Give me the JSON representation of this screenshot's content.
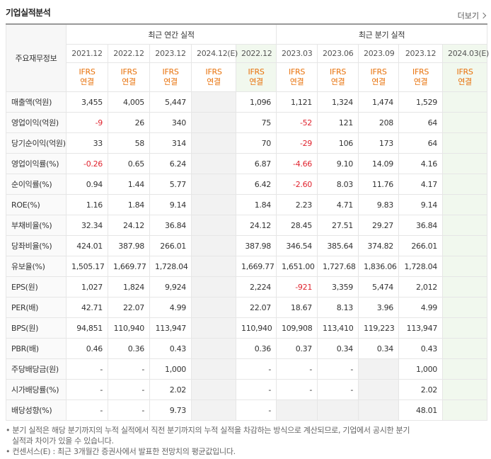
{
  "header": {
    "title": "기업실적분석",
    "more": "더보기"
  },
  "table": {
    "row_header_label": "주요재무정보",
    "group_headers": [
      "최근 연간 실적",
      "최근 분기 실적"
    ],
    "periods": [
      "2021.12",
      "2022.12",
      "2023.12",
      "2024.12(E)",
      "2022.12",
      "2023.03",
      "2023.06",
      "2023.09",
      "2023.12",
      "2024.03(E)"
    ],
    "basis": [
      [
        "IFRS",
        "연결"
      ],
      [
        "IFRS",
        "연결"
      ],
      [
        "IFRS",
        "연결"
      ],
      [
        "IFRS",
        "연결"
      ],
      [
        "IFRS",
        "연결"
      ],
      [
        "IFRS",
        "연결"
      ],
      [
        "IFRS",
        "연결"
      ],
      [
        "IFRS",
        "연결"
      ],
      [
        "IFRS",
        "연결"
      ],
      [
        "IFRS",
        "연결"
      ]
    ],
    "rows": [
      {
        "label": "매출액(억원)",
        "values": [
          "3,455",
          "4,005",
          "5,447",
          null,
          "1,096",
          "1,121",
          "1,324",
          "1,474",
          "1,529",
          null
        ]
      },
      {
        "label": "영업이익(억원)",
        "values": [
          "-9",
          "26",
          "340",
          null,
          "75",
          "-52",
          "121",
          "208",
          "64",
          null
        ]
      },
      {
        "label": "당기순이익(억원)",
        "values": [
          "33",
          "58",
          "314",
          null,
          "70",
          "-29",
          "106",
          "173",
          "64",
          null
        ]
      },
      {
        "label": "영업이익률(%)",
        "values": [
          "-0.26",
          "0.65",
          "6.24",
          null,
          "6.87",
          "-4.66",
          "9.10",
          "14.09",
          "4.16",
          null
        ]
      },
      {
        "label": "순이익률(%)",
        "values": [
          "0.94",
          "1.44",
          "5.77",
          null,
          "6.42",
          "-2.60",
          "8.03",
          "11.76",
          "4.17",
          null
        ]
      },
      {
        "label": "ROE(%)",
        "values": [
          "1.16",
          "1.84",
          "9.14",
          null,
          "1.84",
          "2.23",
          "4.71",
          "9.83",
          "9.14",
          null
        ]
      },
      {
        "label": "부채비율(%)",
        "values": [
          "32.34",
          "24.12",
          "36.84",
          null,
          "24.12",
          "28.45",
          "27.51",
          "29.27",
          "36.84",
          null
        ]
      },
      {
        "label": "당좌비율(%)",
        "values": [
          "424.01",
          "387.98",
          "266.01",
          null,
          "387.98",
          "346.54",
          "385.64",
          "374.82",
          "266.01",
          null
        ]
      },
      {
        "label": "유보율(%)",
        "values": [
          "1,505.17",
          "1,669.77",
          "1,728.04",
          null,
          "1,669.77",
          "1,651.00",
          "1,727.68",
          "1,836.06",
          "1,728.04",
          null
        ]
      },
      {
        "label": "EPS(원)",
        "values": [
          "1,027",
          "1,824",
          "9,924",
          null,
          "2,224",
          "-921",
          "3,359",
          "5,474",
          "2,012",
          null
        ]
      },
      {
        "label": "PER(배)",
        "values": [
          "42.71",
          "22.07",
          "4.99",
          null,
          "22.07",
          "18.67",
          "8.13",
          "3.96",
          "4.99",
          null
        ]
      },
      {
        "label": "BPS(원)",
        "values": [
          "94,851",
          "110,940",
          "113,947",
          null,
          "110,940",
          "109,908",
          "113,410",
          "119,223",
          "113,947",
          null
        ]
      },
      {
        "label": "PBR(배)",
        "values": [
          "0.46",
          "0.36",
          "0.43",
          null,
          "0.36",
          "0.37",
          "0.34",
          "0.34",
          "0.43",
          null
        ]
      },
      {
        "label": "주당배당금(원)",
        "values": [
          "-",
          "-",
          "1,000",
          null,
          "-",
          "-",
          "-",
          null,
          "1,000",
          null
        ]
      },
      {
        "label": "시가배당률(%)",
        "values": [
          "-",
          "-",
          "2.02",
          null,
          "-",
          "-",
          "-",
          null,
          "2.02",
          null
        ]
      },
      {
        "label": "배당성향(%)",
        "values": [
          "-",
          "-",
          "9.73",
          null,
          "-",
          null,
          null,
          null,
          "48.01",
          null
        ]
      }
    ]
  },
  "notes": [
    "분기 실적은 해당 분기까지의 누적 실적에서 직전 분기까지의 누적 실적을 차감하는 방식으로 계산되므로, 기업에서 공시한 분기 실적과 차이가 있을 수 있습니다.",
    "컨센서스(E) : 최근 3개월간 증권사에서 발표한 전망치의 평균값입니다."
  ]
}
